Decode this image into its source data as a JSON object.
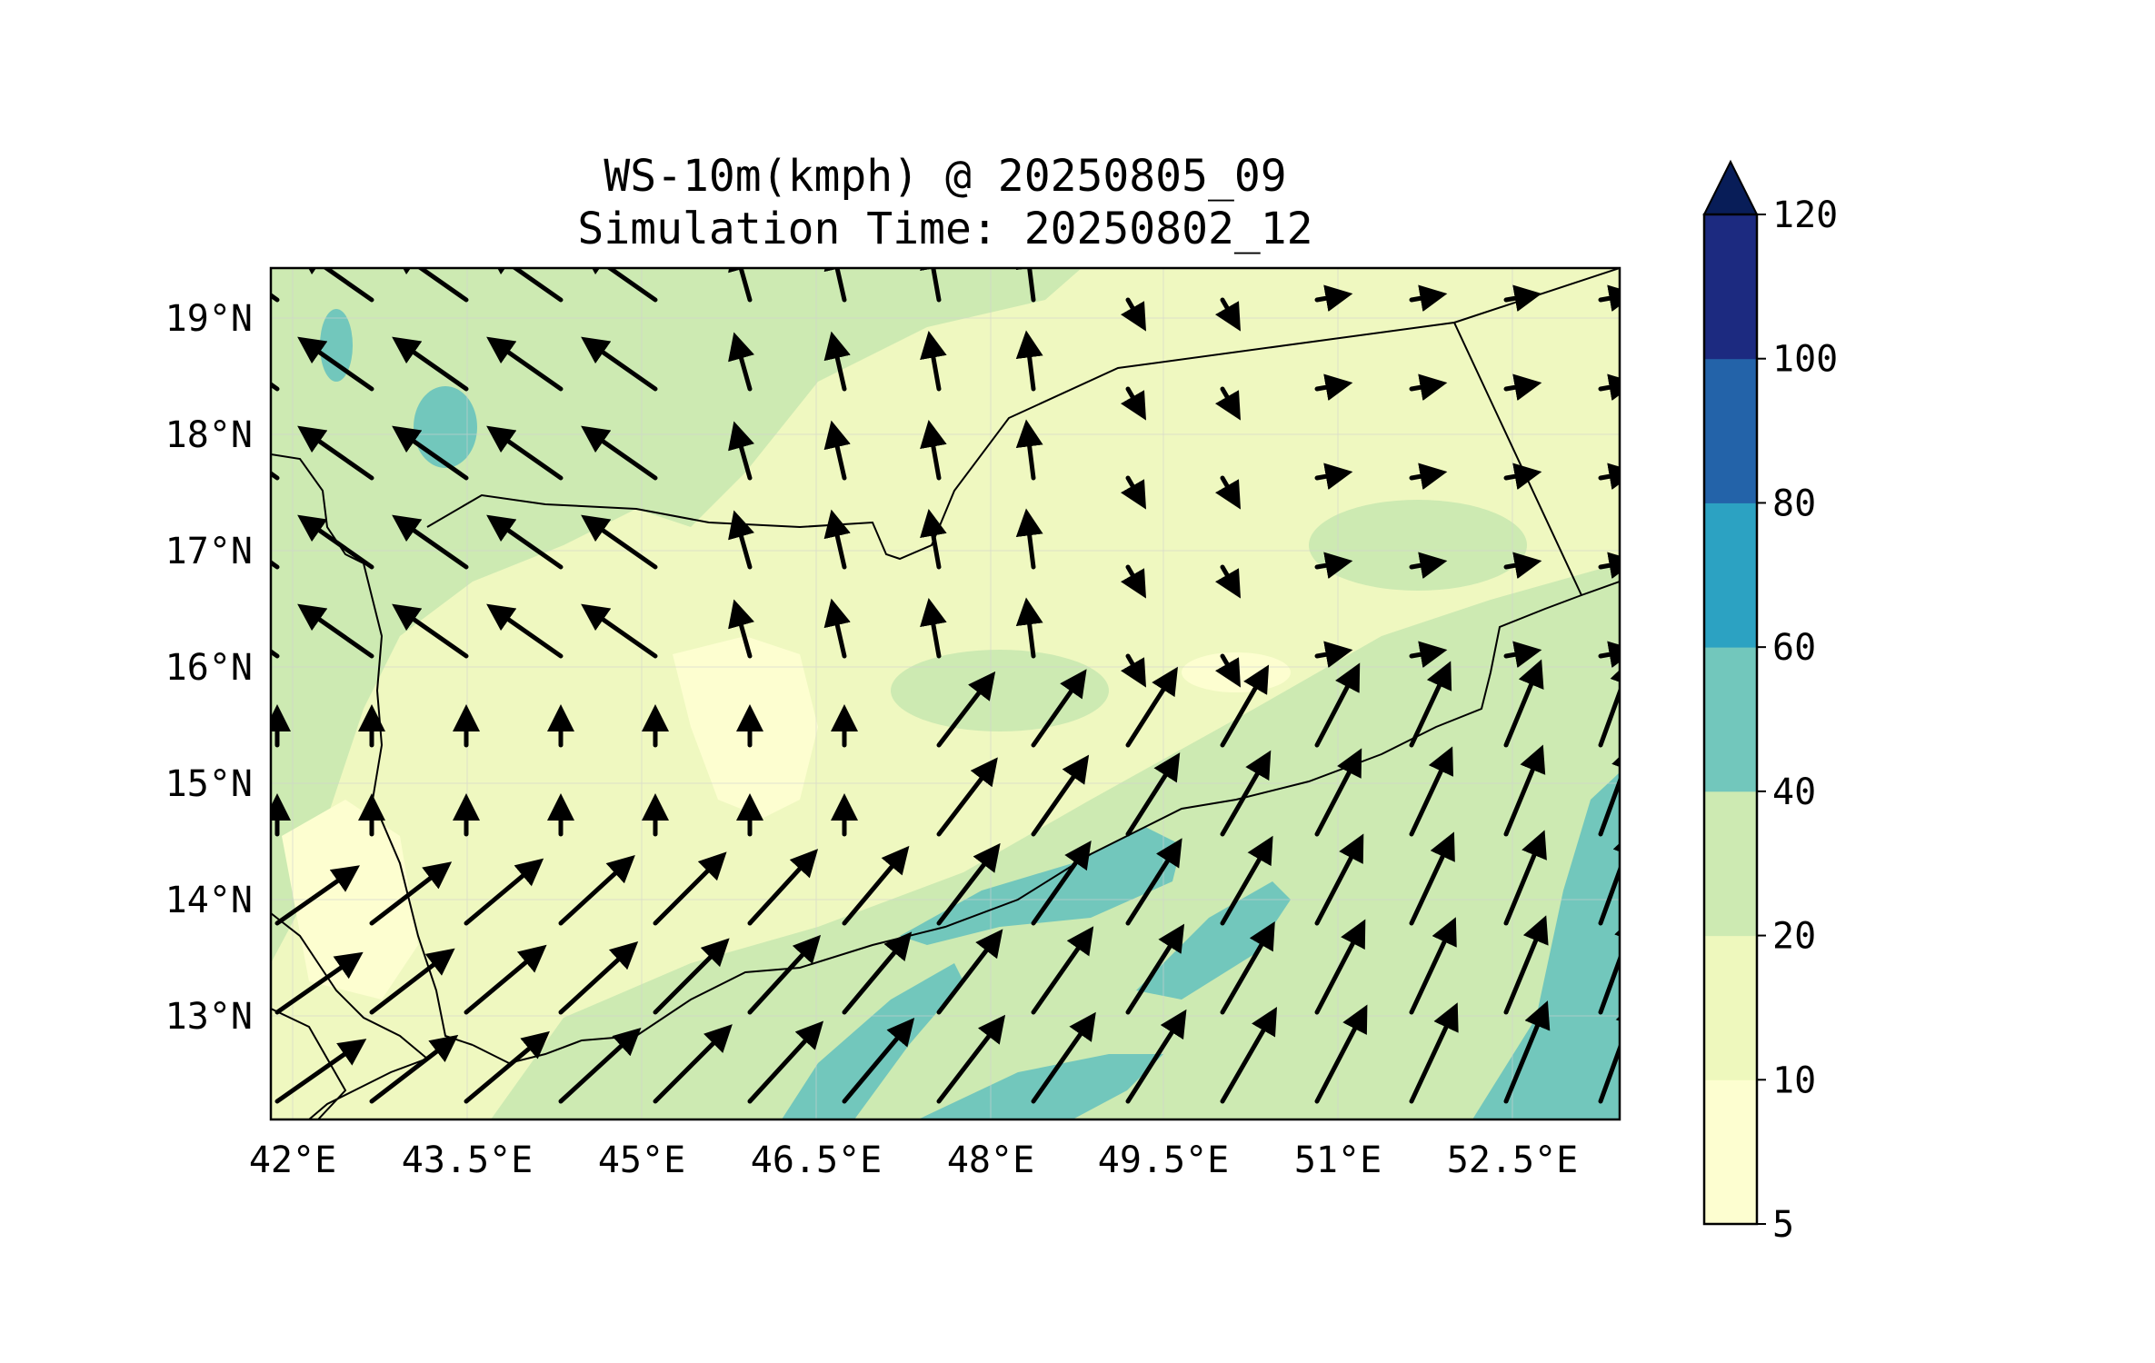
{
  "title": {
    "line1": "WS-10m(kmph) @ 20250805_09",
    "line2": "Simulation Time: 20250802_12"
  },
  "map": {
    "lon_ticks": [
      "42°E",
      "43.5°E",
      "45°E",
      "46.5°E",
      "48°E",
      "49.5°E",
      "51°E",
      "52.5°E"
    ],
    "lat_ticks": [
      "19°N",
      "18°N",
      "17°N",
      "16°N",
      "15°N",
      "14°N",
      "13°N"
    ],
    "lon_range": [
      42.0,
      53.6
    ],
    "lat_range": [
      12.1,
      19.45
    ],
    "grid": true,
    "background_color": "#eff8c0",
    "land_color_low": "#cfeab3"
  },
  "colorbar": {
    "levels": [
      "5",
      "10",
      "20",
      "40",
      "60",
      "80",
      "100",
      "120"
    ],
    "colors": [
      "#fdfed0",
      "#eef8bd",
      "#cdeab2",
      "#72c7bc",
      "#2ca2c2",
      "#2363a9",
      "#1c2a80",
      "#081d58"
    ],
    "extend": "max"
  }
}
